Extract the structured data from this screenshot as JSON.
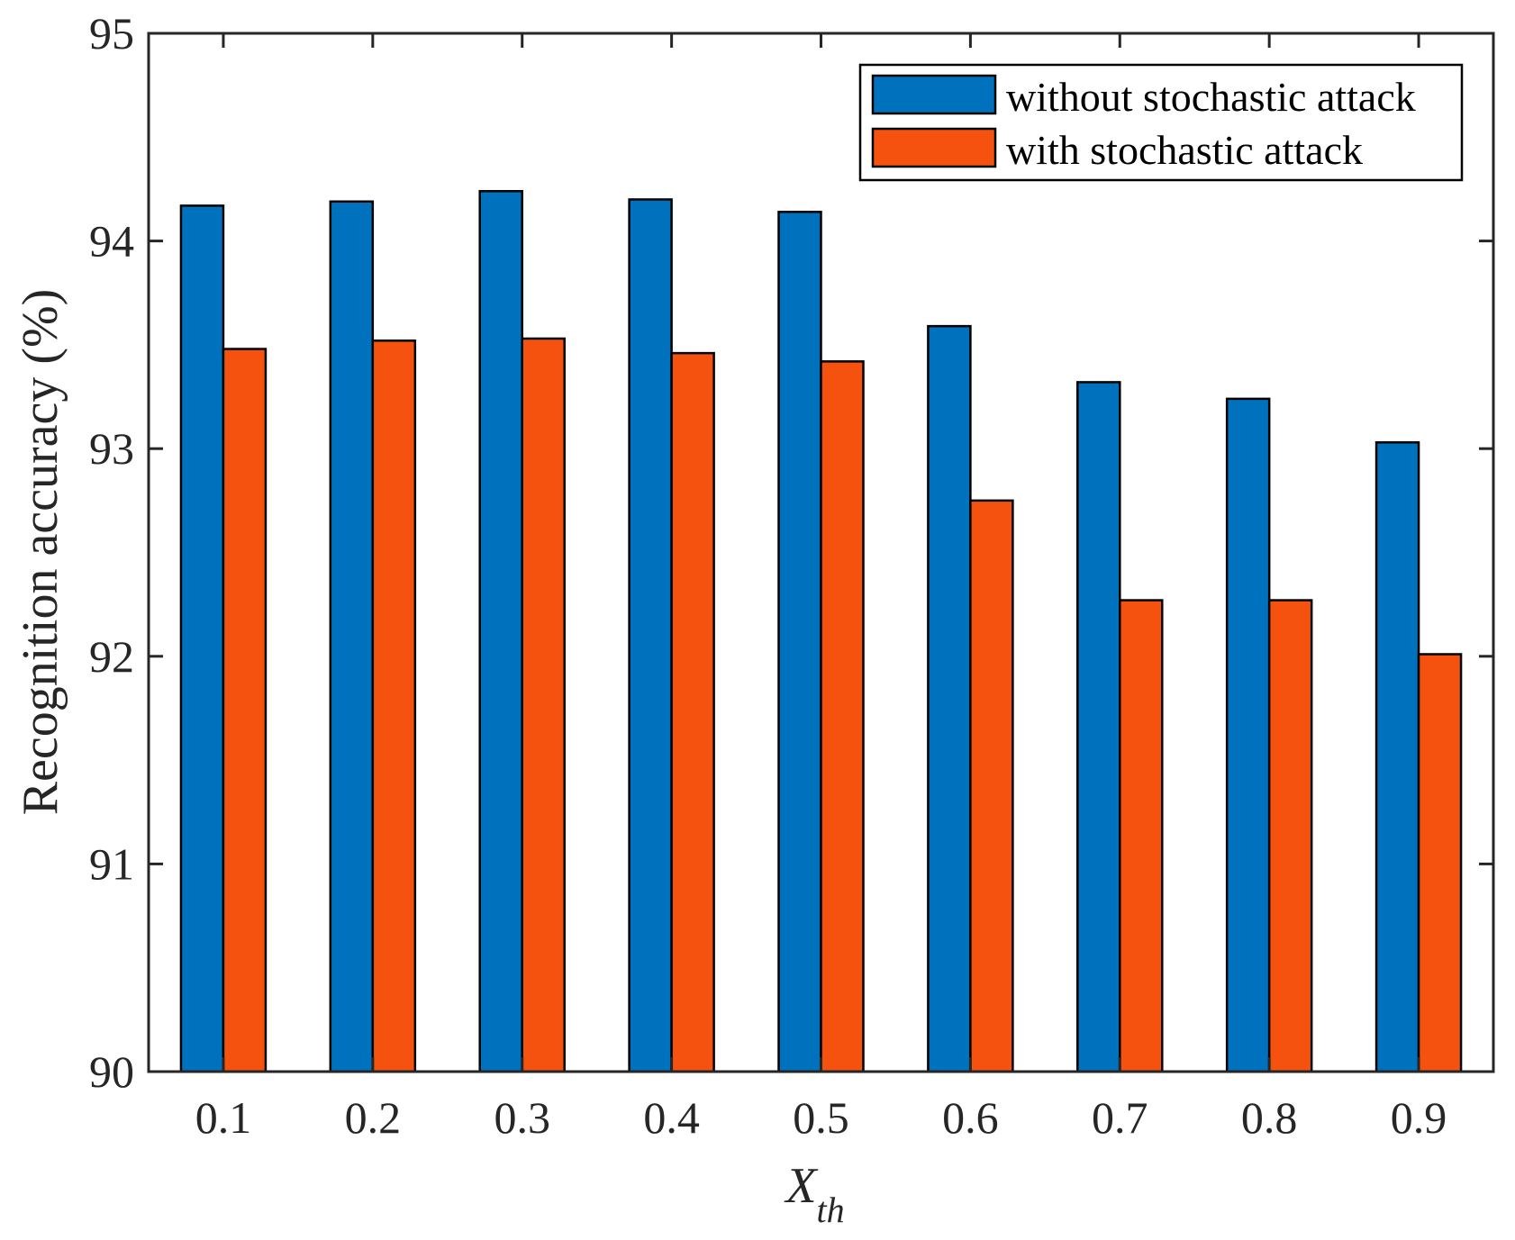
{
  "chart_data": {
    "type": "bar",
    "title": "",
    "xlabel": {
      "main": "X",
      "sub": "th"
    },
    "ylabel": "Recognition accuracy (%)",
    "categories": [
      "0.1",
      "0.2",
      "0.3",
      "0.4",
      "0.5",
      "0.6",
      "0.7",
      "0.8",
      "0.9"
    ],
    "ylim": [
      90,
      95
    ],
    "yticks": [
      "90",
      "91",
      "92",
      "93",
      "94",
      "95"
    ],
    "grid": false,
    "legend_position": "top-right",
    "series": [
      {
        "name": "without stochastic attack",
        "color": "#0072BD",
        "values": [
          94.17,
          94.19,
          94.24,
          94.2,
          94.14,
          93.59,
          93.32,
          93.24,
          93.03
        ]
      },
      {
        "name": "with stochastic attack",
        "color": "#F5520F",
        "values": [
          93.48,
          93.52,
          93.53,
          93.46,
          93.42,
          92.75,
          92.27,
          92.27,
          92.01
        ]
      }
    ]
  }
}
